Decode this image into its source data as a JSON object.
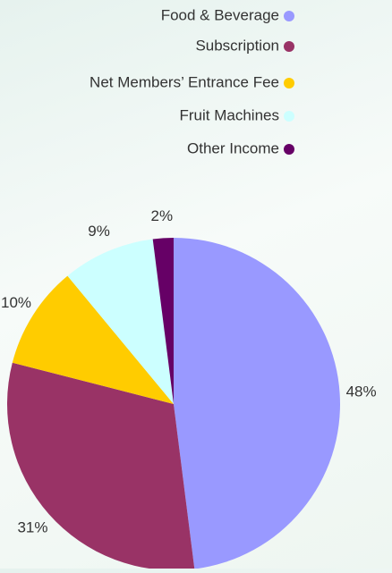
{
  "chart_data": {
    "type": "pie",
    "categories": [
      "Food & Beverage",
      "Subscription",
      "Net Members’ Entrance Fee",
      "Fruit Machines",
      "Other Income"
    ],
    "values": [
      48,
      31,
      10,
      9,
      2
    ],
    "value_labels": [
      "48%",
      "31%",
      "10%",
      "9%",
      "2%"
    ],
    "colors": [
      "#9999ff",
      "#993366",
      "#ffcc00",
      "#ccffff",
      "#660066"
    ],
    "legend": "top-right"
  }
}
